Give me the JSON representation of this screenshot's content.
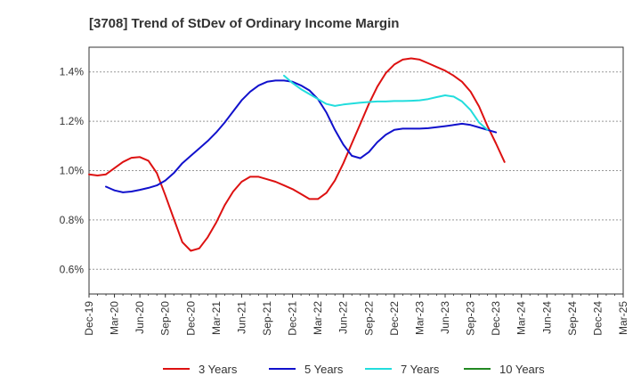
{
  "chart_data": {
    "type": "line",
    "title": "[3708]  Trend of StDev of Ordinary Income Margin",
    "xlabel": "",
    "ylabel": "",
    "x_ticks": [
      "Dec-19",
      "Mar-20",
      "Jun-20",
      "Sep-20",
      "Dec-20",
      "Mar-21",
      "Jun-21",
      "Sep-21",
      "Dec-21",
      "Mar-22",
      "Jun-22",
      "Sep-22",
      "Dec-22",
      "Mar-23",
      "Jun-23",
      "Sep-23",
      "Dec-23",
      "Mar-24",
      "Jun-24",
      "Sep-24",
      "Dec-24",
      "Mar-25"
    ],
    "y_ticks": [
      0.6,
      0.8,
      1.0,
      1.2,
      1.4
    ],
    "y_tick_labels": [
      "0.6%",
      "0.8%",
      "1.0%",
      "1.2%",
      "1.4%"
    ],
    "ylim": [
      0.5,
      1.5
    ],
    "grid": "horizontal dashed",
    "legend_position": "bottom",
    "series": [
      {
        "name": "3 Years",
        "color": "#dd1111",
        "start_index": 0,
        "values": [
          0.985,
          0.98,
          0.985,
          1.01,
          1.035,
          1.052,
          1.055,
          1.04,
          0.99,
          0.9,
          0.805,
          0.71,
          0.675,
          0.685,
          0.73,
          0.79,
          0.86,
          0.915,
          0.955,
          0.975,
          0.975,
          0.965,
          0.955,
          0.94,
          0.925,
          0.905,
          0.885,
          0.885,
          0.91,
          0.96,
          1.03,
          1.11,
          1.19,
          1.27,
          1.34,
          1.395,
          1.43,
          1.45,
          1.455,
          1.45,
          1.435,
          1.42,
          1.405,
          1.385,
          1.36,
          1.32,
          1.26,
          1.18,
          1.11,
          1.035
        ]
      },
      {
        "name": "5 Years",
        "color": "#1111cc",
        "start_index": 2,
        "values": [
          0.935,
          0.92,
          0.912,
          0.915,
          0.922,
          0.93,
          0.94,
          0.96,
          0.99,
          1.03,
          1.06,
          1.09,
          1.12,
          1.155,
          1.195,
          1.24,
          1.285,
          1.32,
          1.345,
          1.36,
          1.365,
          1.365,
          1.36,
          1.345,
          1.325,
          1.29,
          1.235,
          1.165,
          1.105,
          1.06,
          1.05,
          1.075,
          1.115,
          1.145,
          1.165,
          1.17,
          1.17,
          1.17,
          1.172,
          1.176,
          1.18,
          1.185,
          1.19,
          1.185,
          1.175,
          1.165,
          1.155
        ]
      },
      {
        "name": "7 Years",
        "color": "#22dddd",
        "start_index": 23,
        "values": [
          1.385,
          1.355,
          1.33,
          1.31,
          1.29,
          1.27,
          1.262,
          1.268,
          1.272,
          1.275,
          1.278,
          1.28,
          1.28,
          1.282,
          1.282,
          1.283,
          1.285,
          1.29,
          1.298,
          1.305,
          1.3,
          1.28,
          1.245,
          1.195,
          1.165
        ]
      },
      {
        "name": "10 Years",
        "color": "#228822",
        "start_index": 0,
        "values": []
      }
    ]
  }
}
